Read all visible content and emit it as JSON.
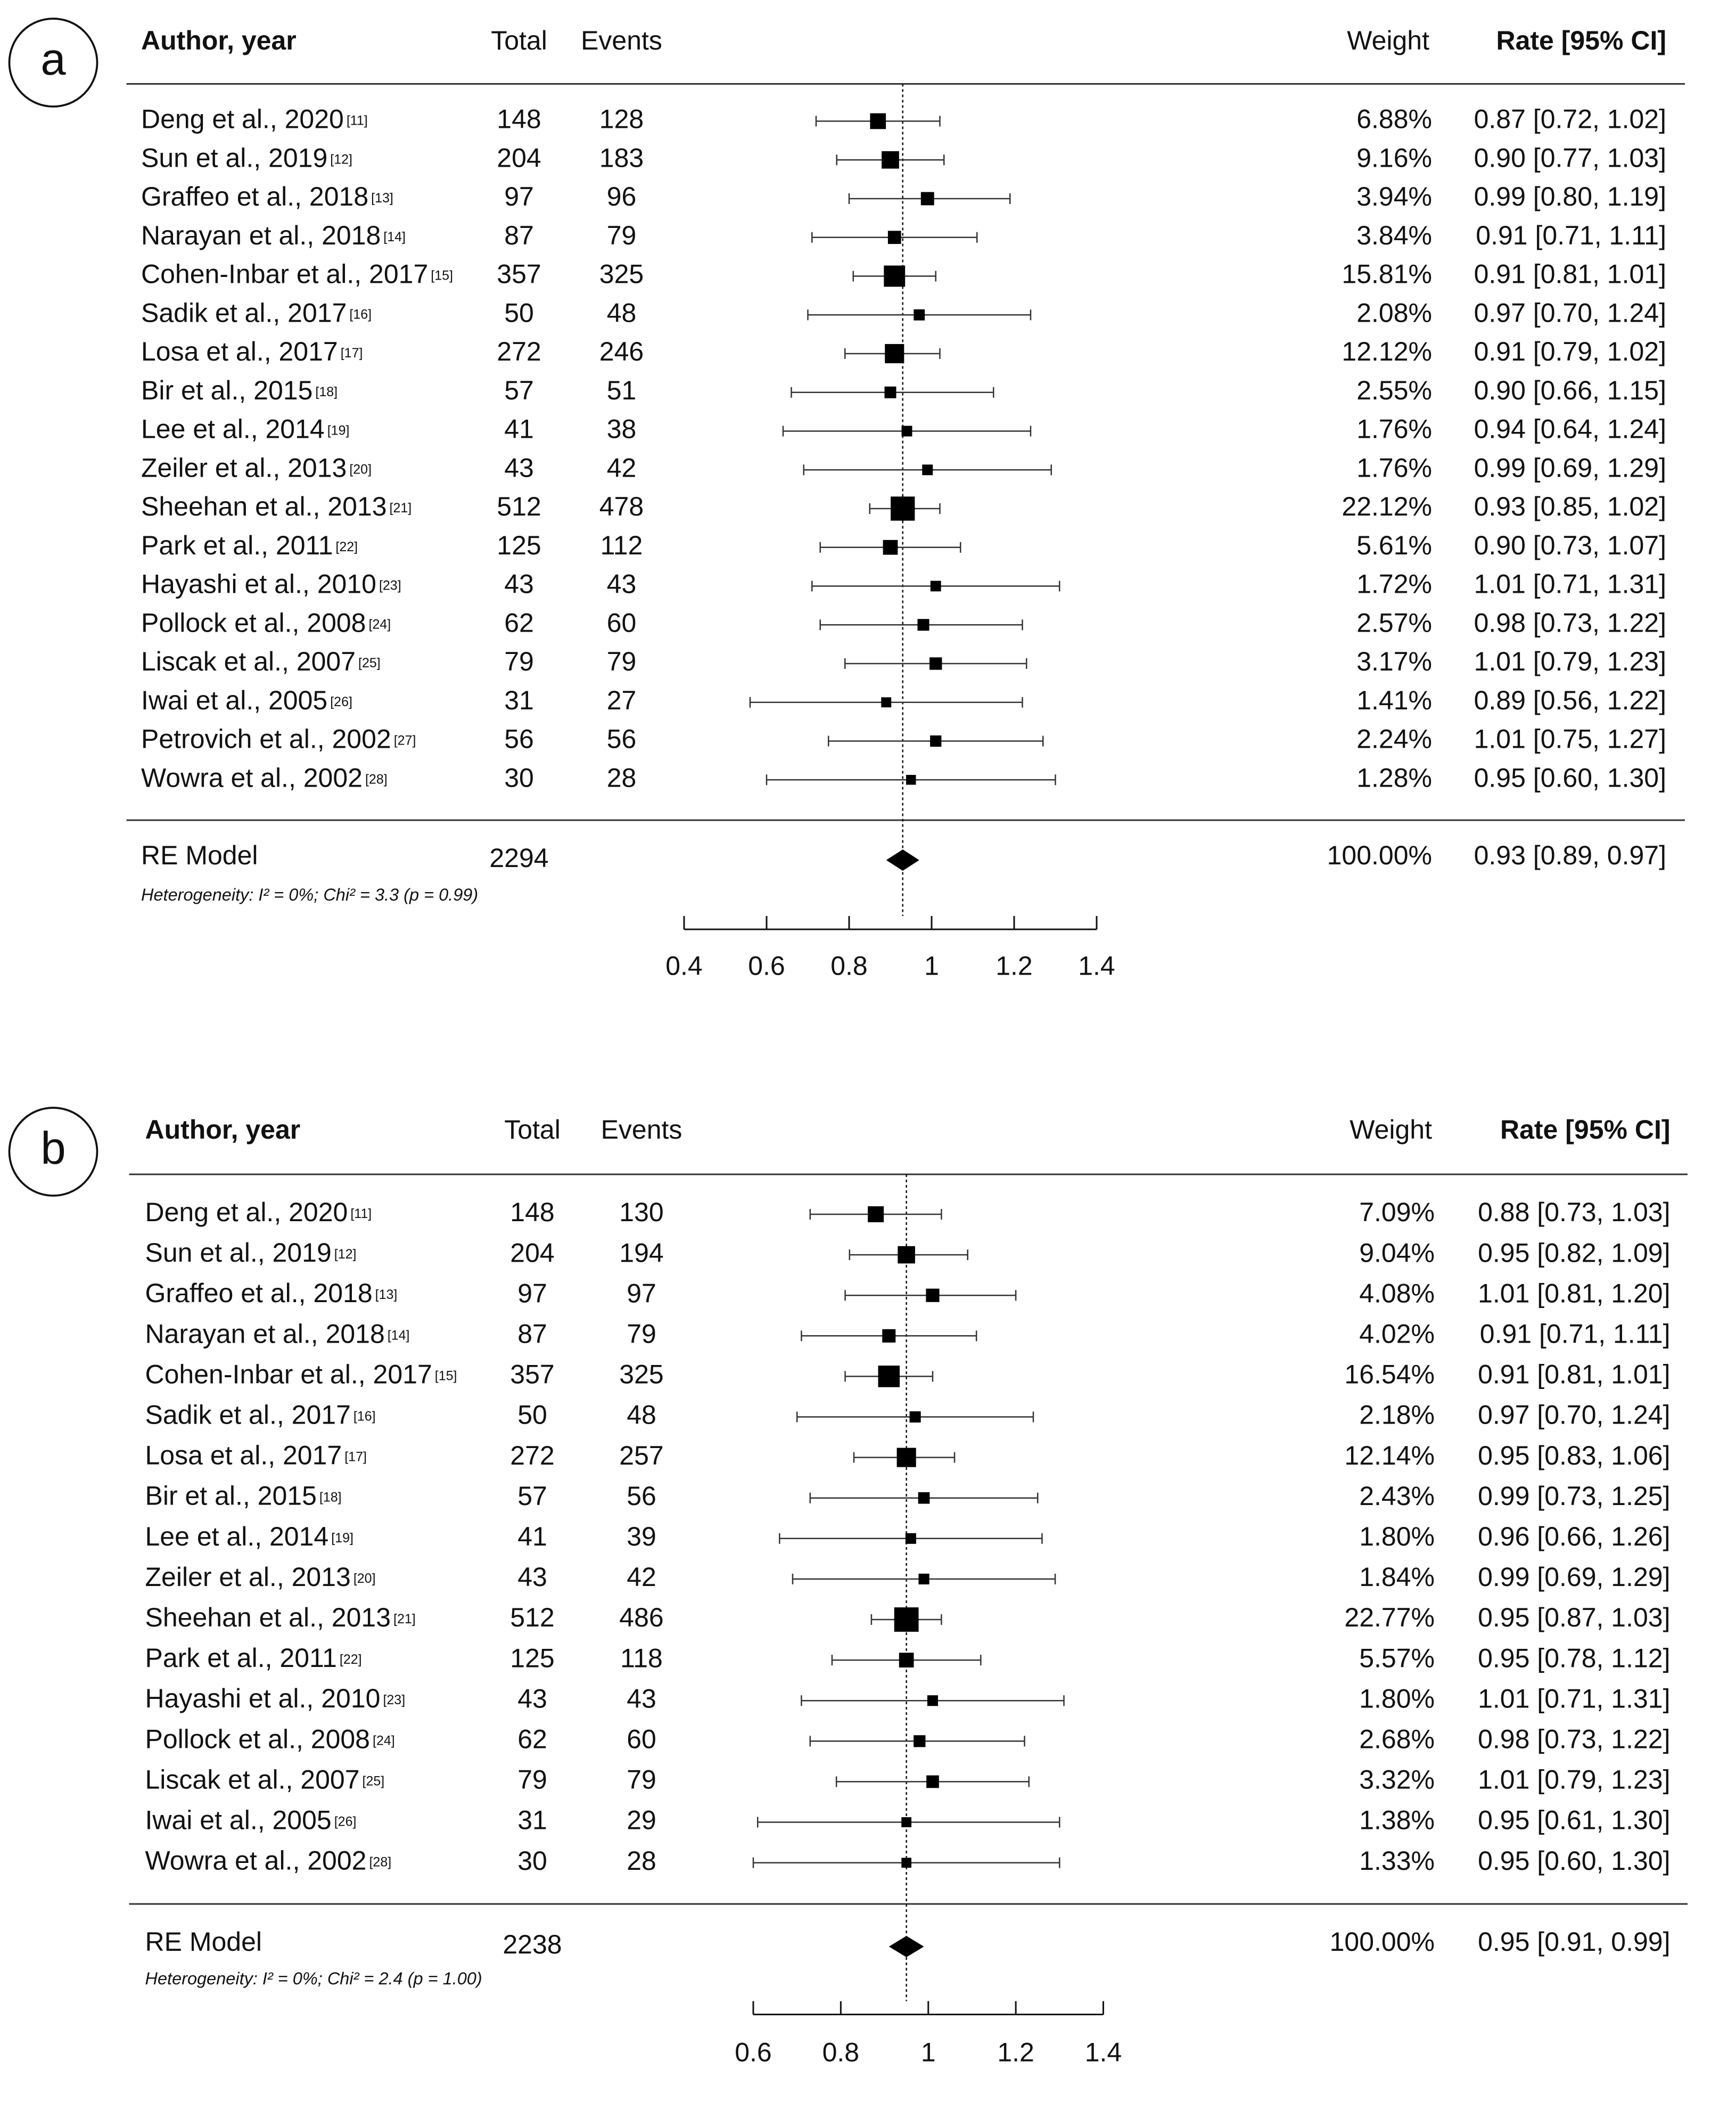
{
  "chart_data": [
    {
      "type": "forest",
      "panel": "a",
      "headers": {
        "author": "Author, year",
        "total": "Total",
        "events": "Events",
        "weight": "Weight",
        "rate": "Rate [95% CI]"
      },
      "categories": [
        "Deng et al., 2020",
        "Sun et al., 2019",
        "Graffeo et al., 2018",
        "Narayan et al., 2018",
        "Cohen-Inbar et al., 2017",
        "Sadik et al., 2017",
        "Losa et al., 2017",
        "Bir et al., 2015",
        "Lee et al., 2014",
        "Zeiler et al., 2013",
        "Sheehan et al., 2013",
        "Park et al., 2011",
        "Hayashi et al., 2010",
        "Pollock et al., 2008",
        "Liscak et al., 2007",
        "Iwai et al., 2005",
        "Petrovich et al., 2002",
        "Wowra et al., 2002"
      ],
      "refs": [
        "[11]",
        "[12]",
        "[13]",
        "[14]",
        "[15]",
        "[16]",
        "[17]",
        "[18]",
        "[19]",
        "[20]",
        "[21]",
        "[22]",
        "[23]",
        "[24]",
        "[25]",
        "[26]",
        "[27]",
        "[28]"
      ],
      "totals": [
        148,
        204,
        97,
        87,
        357,
        50,
        272,
        57,
        41,
        43,
        512,
        125,
        43,
        62,
        79,
        31,
        56,
        30
      ],
      "events": [
        128,
        183,
        96,
        79,
        325,
        48,
        246,
        51,
        38,
        42,
        478,
        112,
        43,
        60,
        79,
        27,
        56,
        28
      ],
      "weights": [
        6.88,
        9.16,
        3.94,
        3.84,
        15.81,
        2.08,
        12.12,
        2.55,
        1.76,
        1.76,
        22.12,
        5.61,
        1.72,
        2.57,
        3.17,
        1.41,
        2.24,
        1.28
      ],
      "weight_labels": [
        "6.88%",
        "9.16%",
        "3.94%",
        "3.84%",
        "15.81%",
        "2.08%",
        "12.12%",
        "2.55%",
        "1.76%",
        "1.76%",
        "22.12%",
        "5.61%",
        "1.72%",
        "2.57%",
        "3.17%",
        "1.41%",
        "2.24%",
        "1.28%"
      ],
      "values": [
        0.87,
        0.9,
        0.99,
        0.91,
        0.91,
        0.97,
        0.91,
        0.9,
        0.94,
        0.99,
        0.93,
        0.9,
        1.01,
        0.98,
        1.01,
        0.89,
        1.01,
        0.95
      ],
      "ci_low": [
        0.72,
        0.77,
        0.8,
        0.71,
        0.81,
        0.7,
        0.79,
        0.66,
        0.64,
        0.69,
        0.85,
        0.73,
        0.71,
        0.73,
        0.79,
        0.56,
        0.75,
        0.6
      ],
      "ci_high": [
        1.02,
        1.03,
        1.19,
        1.11,
        1.01,
        1.24,
        1.02,
        1.15,
        1.24,
        1.29,
        1.02,
        1.07,
        1.31,
        1.22,
        1.23,
        1.22,
        1.27,
        1.3
      ],
      "value_labels": [
        "0.87 [0.72, 1.02]",
        "0.90 [0.77, 1.03]",
        "0.99 [0.80, 1.19]",
        "0.91 [0.71, 1.11]",
        "0.91 [0.81, 1.01]",
        "0.97 [0.70, 1.24]",
        "0.91 [0.79, 1.02]",
        "0.90 [0.66, 1.15]",
        "0.94 [0.64, 1.24]",
        "0.99 [0.69, 1.29]",
        "0.93 [0.85, 1.02]",
        "0.90 [0.73, 1.07]",
        "1.01 [0.71, 1.31]",
        "0.98 [0.73, 1.22]",
        "1.01 [0.79, 1.23]",
        "0.89 [0.56, 1.22]",
        "1.01 [0.75, 1.27]",
        "0.95 [0.60, 1.30]"
      ],
      "summary": {
        "label": "RE Model",
        "total": 2294,
        "weight_label": "100.00%",
        "value": 0.93,
        "ci_low": 0.89,
        "ci_high": 0.97,
        "value_label": "0.93 [0.89, 0.97]"
      },
      "heterogeneity": "Heterogeneity: I² = 0%; Chi² = 3.3 (p = 0.99)",
      "xlim": [
        0.4,
        1.4
      ],
      "xticks": [
        0.4,
        0.6,
        0.8,
        1,
        1.2,
        1.4
      ]
    },
    {
      "type": "forest",
      "panel": "b",
      "headers": {
        "author": "Author, year",
        "total": "Total",
        "events": "Events",
        "weight": "Weight",
        "rate": "Rate [95% CI]"
      },
      "categories": [
        "Deng et al., 2020",
        "Sun et al., 2019",
        "Graffeo et al., 2018",
        "Narayan et al., 2018",
        "Cohen-Inbar et al., 2017",
        "Sadik et al., 2017",
        "Losa et al., 2017",
        "Bir et al., 2015",
        "Lee et al., 2014",
        "Zeiler et al., 2013",
        "Sheehan et al., 2013",
        "Park et al., 2011",
        "Hayashi et al., 2010",
        "Pollock et al., 2008",
        "Liscak et al., 2007",
        "Iwai et al., 2005",
        "Wowra et al., 2002"
      ],
      "refs": [
        "[11]",
        "[12]",
        "[13]",
        "[14]",
        "[15]",
        "[16]",
        "[17]",
        "[18]",
        "[19]",
        "[20]",
        "[21]",
        "[22]",
        "[23]",
        "[24]",
        "[25]",
        "[26]",
        "[28]"
      ],
      "totals": [
        148,
        204,
        97,
        87,
        357,
        50,
        272,
        57,
        41,
        43,
        512,
        125,
        43,
        62,
        79,
        31,
        30
      ],
      "events": [
        130,
        194,
        97,
        79,
        325,
        48,
        257,
        56,
        39,
        42,
        486,
        118,
        43,
        60,
        79,
        29,
        28
      ],
      "weights": [
        7.09,
        9.04,
        4.08,
        4.02,
        16.54,
        2.18,
        12.14,
        2.43,
        1.8,
        1.84,
        22.77,
        5.57,
        1.8,
        2.68,
        3.32,
        1.38,
        1.33
      ],
      "weight_labels": [
        "7.09%",
        "9.04%",
        "4.08%",
        "4.02%",
        "16.54%",
        "2.18%",
        "12.14%",
        "2.43%",
        "1.80%",
        "1.84%",
        "22.77%",
        "5.57%",
        "1.80%",
        "2.68%",
        "3.32%",
        "1.38%",
        "1.33%"
      ],
      "values": [
        0.88,
        0.95,
        1.01,
        0.91,
        0.91,
        0.97,
        0.95,
        0.99,
        0.96,
        0.99,
        0.95,
        0.95,
        1.01,
        0.98,
        1.01,
        0.95,
        0.95
      ],
      "ci_low": [
        0.73,
        0.82,
        0.81,
        0.71,
        0.81,
        0.7,
        0.83,
        0.73,
        0.66,
        0.69,
        0.87,
        0.78,
        0.71,
        0.73,
        0.79,
        0.61,
        0.6
      ],
      "ci_high": [
        1.03,
        1.09,
        1.2,
        1.11,
        1.01,
        1.24,
        1.06,
        1.25,
        1.26,
        1.29,
        1.03,
        1.12,
        1.31,
        1.22,
        1.23,
        1.3,
        1.3
      ],
      "value_labels": [
        "0.88 [0.73, 1.03]",
        "0.95 [0.82, 1.09]",
        "1.01 [0.81, 1.20]",
        "0.91 [0.71, 1.11]",
        "0.91 [0.81, 1.01]",
        "0.97 [0.70, 1.24]",
        "0.95 [0.83, 1.06]",
        "0.99 [0.73, 1.25]",
        "0.96 [0.66, 1.26]",
        "0.99 [0.69, 1.29]",
        "0.95 [0.87, 1.03]",
        "0.95 [0.78, 1.12]",
        "1.01 [0.71, 1.31]",
        "0.98 [0.73, 1.22]",
        "1.01 [0.79, 1.23]",
        "0.95 [0.61, 1.30]",
        "0.95 [0.60, 1.30]"
      ],
      "summary": {
        "label": "RE Model",
        "total": 2238,
        "weight_label": "100.00%",
        "value": 0.95,
        "ci_low": 0.91,
        "ci_high": 0.99,
        "value_label": "0.95 [0.91, 0.99]"
      },
      "heterogeneity": "Heterogeneity: I² = 0%; Chi² = 2.4 (p = 1.00)",
      "xlim": [
        0.6,
        1.4
      ],
      "xticks": [
        0.6,
        0.8,
        1,
        1.2,
        1.4
      ]
    }
  ]
}
